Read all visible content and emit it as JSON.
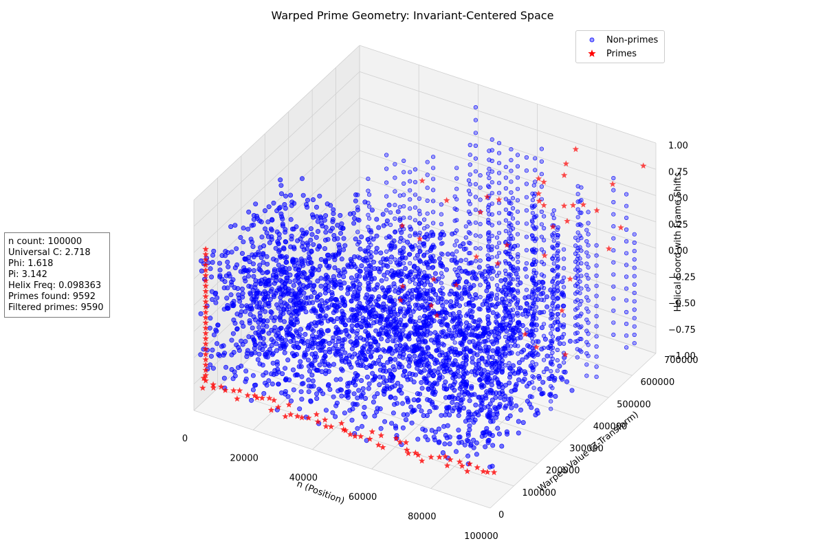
{
  "chart_data": {
    "type": "scatter",
    "projection": "3d",
    "title": "Warped Prime Geometry: Invariant-Centered Space",
    "xlabel": "n (Position)",
    "ylabel": "Warped Value (Z-Transform)",
    "zlabel": "Helical Coord with Frame Shifts",
    "xlim": [
      0,
      100000
    ],
    "ylim": [
      0,
      700000
    ],
    "zlim": [
      -1.0,
      1.0
    ],
    "x_ticks": [
      "0",
      "20000",
      "40000",
      "60000",
      "80000",
      "100000"
    ],
    "y_ticks": [
      "0",
      "100000",
      "200000",
      "300000",
      "400000",
      "500000",
      "600000",
      "700000"
    ],
    "z_ticks": [
      "−1.00",
      "−0.75",
      "−0.50",
      "−0.25",
      "0.00",
      "0.25",
      "0.50",
      "0.75",
      "1.00"
    ],
    "grid": true,
    "legend_position": "top-right",
    "series": [
      {
        "name": "Non-primes",
        "marker": "circle",
        "color": "#0000ff"
      },
      {
        "name": "Primes",
        "marker": "star",
        "color": "#ff0000"
      }
    ]
  },
  "info_box": {
    "lines": [
      "n count: 100000",
      "Universal C: 2.718",
      "Phi: 1.618",
      "Pi: 3.142",
      "Helix Freq: 0.098363",
      "Primes found: 9592",
      "Filtered primes: 9590"
    ]
  },
  "colors": {
    "nonprime": "#0000ff",
    "prime": "#ff0000",
    "pane": "#f2f2f2",
    "grid": "#d0d0d0"
  }
}
